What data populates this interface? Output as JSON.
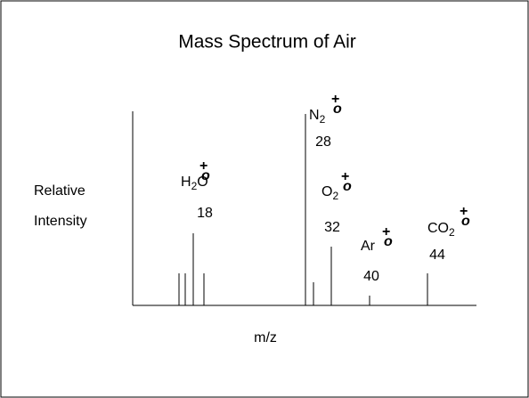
{
  "title": "Mass Spectrum of Air",
  "y_axis_label": [
    "Relative",
    "Intensity"
  ],
  "x_axis_label": "m/z",
  "ions": [
    {
      "parts": [
        "H",
        "2",
        "O"
      ],
      "charge": "+",
      "radical": "o",
      "mz": 18
    },
    {
      "parts": [
        "N",
        "2"
      ],
      "charge": "+",
      "radical": "o",
      "mz": 28
    },
    {
      "parts": [
        "O",
        "2"
      ],
      "charge": "+",
      "radical": "o",
      "mz": 32
    },
    {
      "parts": [
        "Ar"
      ],
      "charge": "+",
      "radical": "o",
      "mz": 40
    },
    {
      "parts": [
        "CO",
        "2"
      ],
      "charge": "+",
      "radical": "o",
      "mz": 44
    }
  ]
}
